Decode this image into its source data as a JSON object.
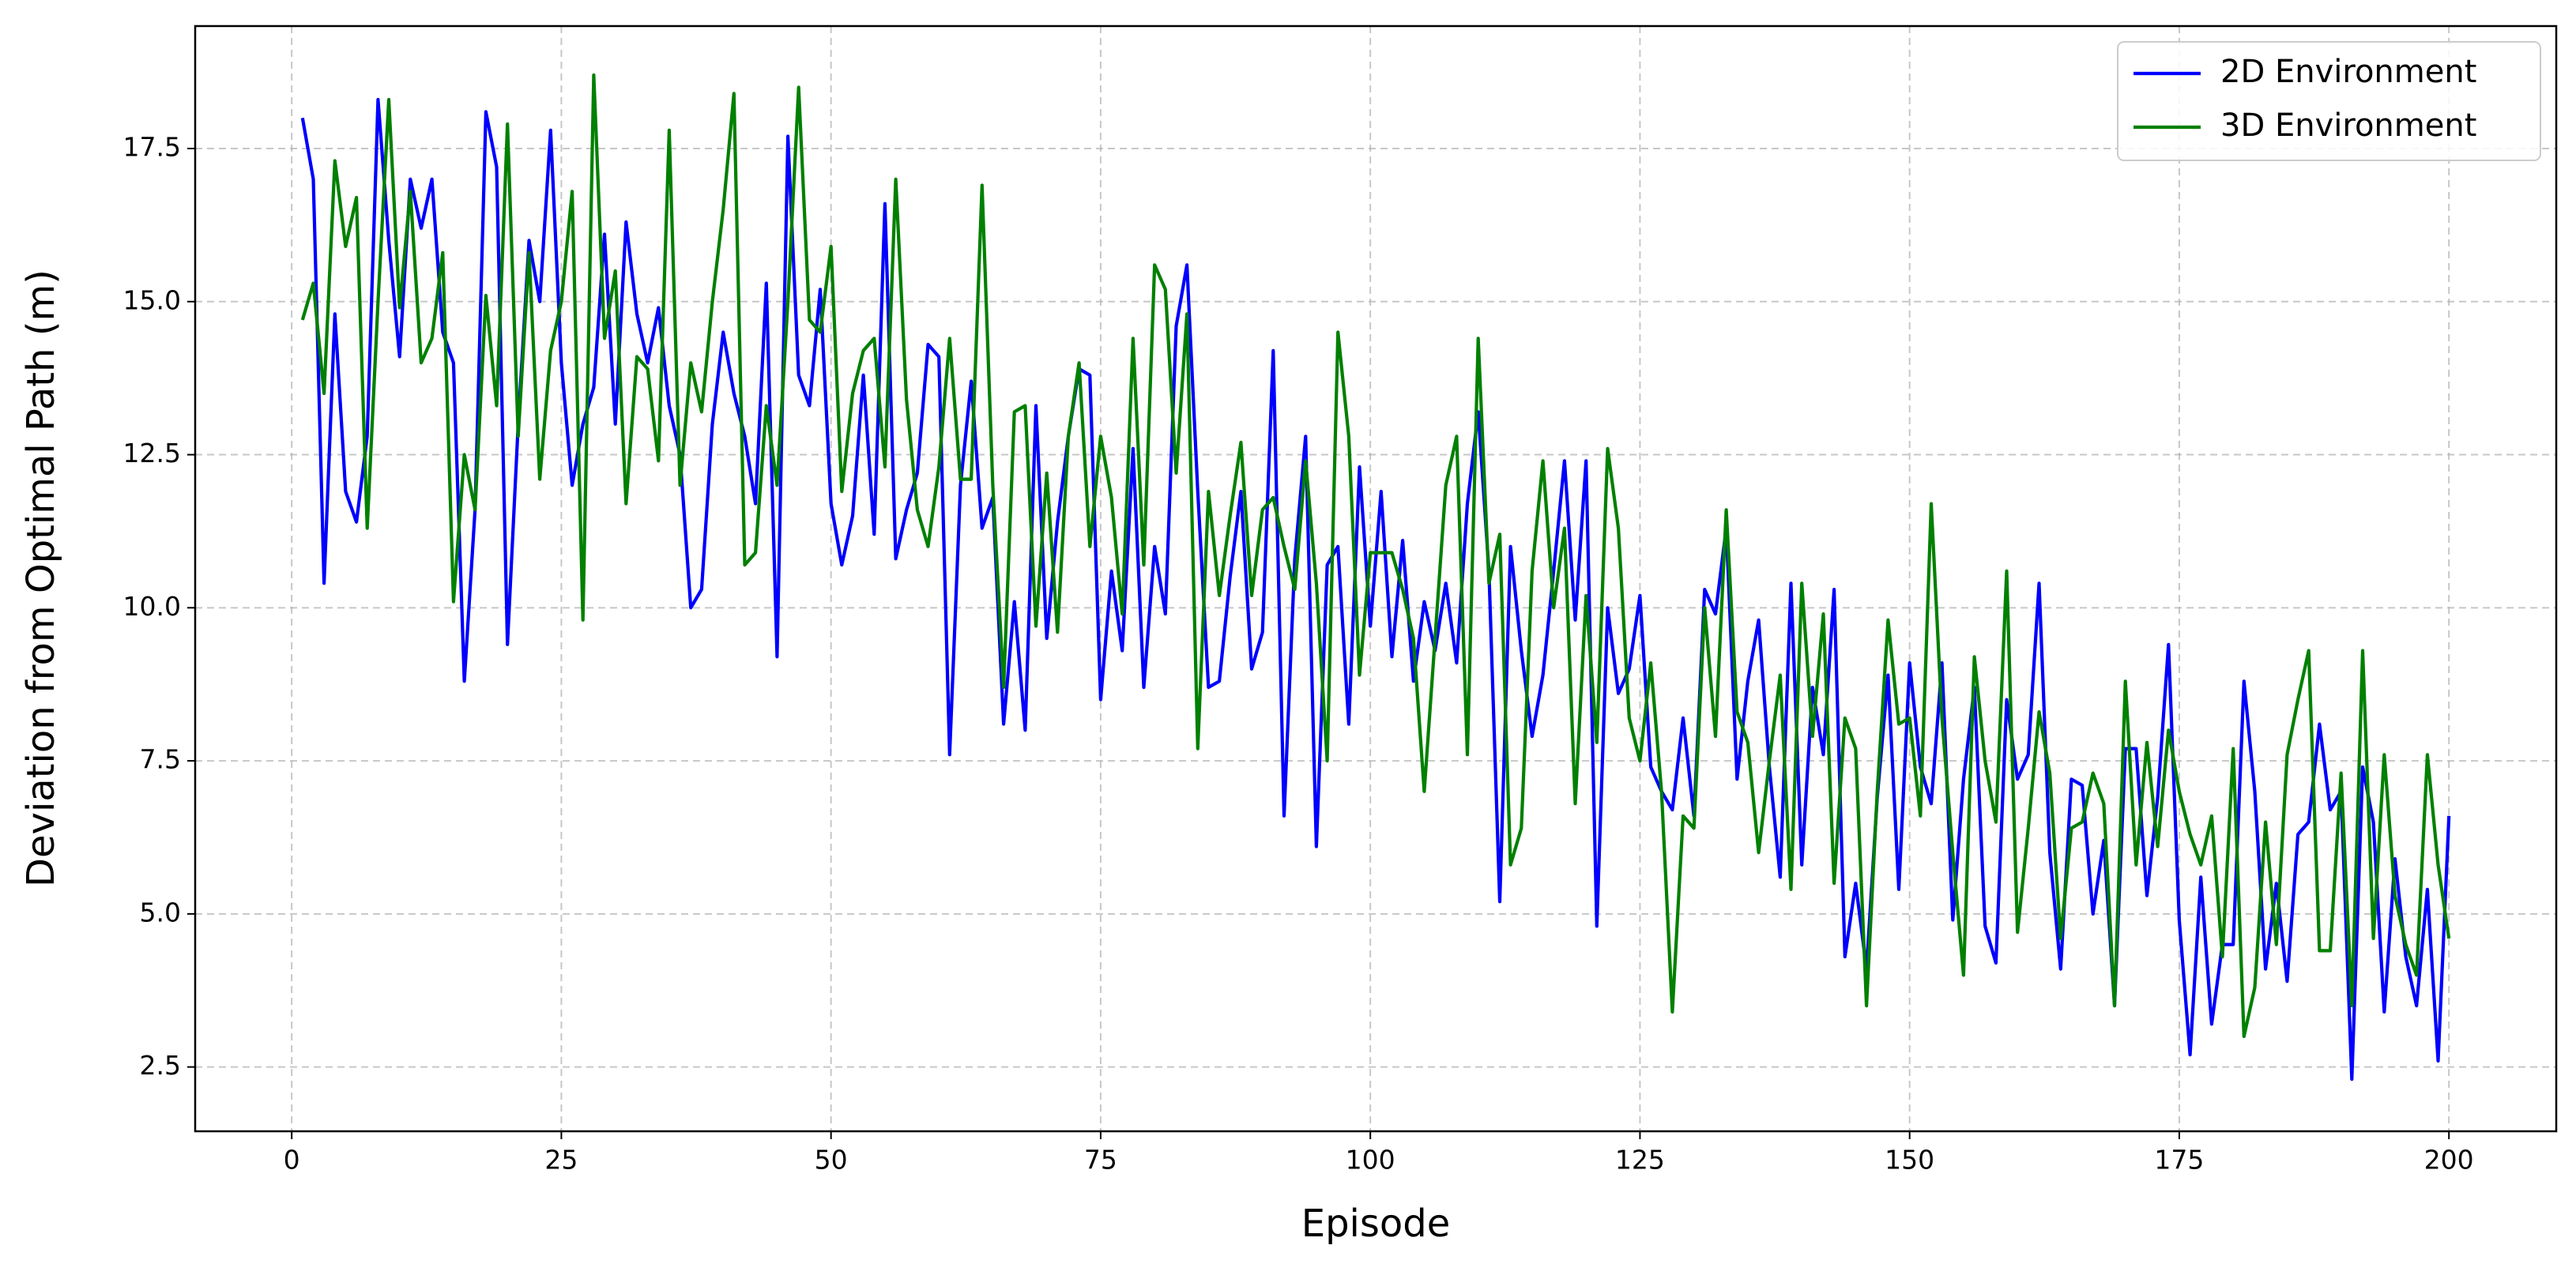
{
  "chart_data": {
    "type": "line",
    "xlabel": "Episode",
    "ylabel": "Deviation from Optimal Path (m)",
    "x": [
      1,
      2,
      3,
      4,
      5,
      6,
      7,
      8,
      9,
      10,
      11,
      12,
      13,
      14,
      15,
      16,
      17,
      18,
      19,
      20,
      21,
      22,
      23,
      24,
      25,
      26,
      27,
      28,
      29,
      30,
      31,
      32,
      33,
      34,
      35,
      36,
      37,
      38,
      39,
      40,
      41,
      42,
      43,
      44,
      45,
      46,
      47,
      48,
      49,
      50,
      51,
      52,
      53,
      54,
      55,
      56,
      57,
      58,
      59,
      60,
      61,
      62,
      63,
      64,
      65,
      66,
      67,
      68,
      69,
      70,
      71,
      72,
      73,
      74,
      75,
      76,
      77,
      78,
      79,
      80,
      81,
      82,
      83,
      84,
      85,
      86,
      87,
      88,
      89,
      90,
      91,
      92,
      93,
      94,
      95,
      96,
      97,
      98,
      99,
      100,
      101,
      102,
      103,
      104,
      105,
      106,
      107,
      108,
      109,
      110,
      111,
      112,
      113,
      114,
      115,
      116,
      117,
      118,
      119,
      120,
      121,
      122,
      123,
      124,
      125,
      126,
      127,
      128,
      129,
      130,
      131,
      132,
      133,
      134,
      135,
      136,
      137,
      138,
      139,
      140,
      141,
      142,
      143,
      144,
      145,
      146,
      147,
      148,
      149,
      150,
      151,
      152,
      153,
      154,
      155,
      156,
      157,
      158,
      159,
      160,
      161,
      162,
      163,
      164,
      165,
      166,
      167,
      168,
      169,
      170,
      171,
      172,
      173,
      174,
      175,
      176,
      177,
      178,
      179,
      180,
      181,
      182,
      183,
      184,
      185,
      186,
      187,
      188,
      189,
      190,
      191,
      192,
      193,
      194,
      195,
      196,
      197,
      198,
      199,
      200
    ],
    "series": [
      {
        "name": "2D Environment",
        "color": "#0000ff",
        "values": [
          18.0,
          17.0,
          10.4,
          14.8,
          11.9,
          11.4,
          12.8,
          18.3,
          16.0,
          14.1,
          17.0,
          16.2,
          17.0,
          14.5,
          14.0,
          8.8,
          11.6,
          18.1,
          17.2,
          9.4,
          13.0,
          16.0,
          15.0,
          17.8,
          14.0,
          12.0,
          13.0,
          13.6,
          16.1,
          13.0,
          16.3,
          14.8,
          14.0,
          14.9,
          13.3,
          12.5,
          10.0,
          10.3,
          13.0,
          14.5,
          13.5,
          12.8,
          11.7,
          15.3,
          9.2,
          17.7,
          13.8,
          13.3,
          15.2,
          11.7,
          10.7,
          11.5,
          13.8,
          11.2,
          16.6,
          10.8,
          11.6,
          12.2,
          14.3,
          14.1,
          7.6,
          12.0,
          13.7,
          11.3,
          11.8,
          8.1,
          10.1,
          8.0,
          13.3,
          9.5,
          11.4,
          12.8,
          13.9,
          13.8,
          8.5,
          10.6,
          9.3,
          12.6,
          8.7,
          11.0,
          9.9,
          14.6,
          15.6,
          11.9,
          8.7,
          8.8,
          10.5,
          11.9,
          9.0,
          9.6,
          14.2,
          6.6,
          10.8,
          12.8,
          6.1,
          10.7,
          11.0,
          8.1,
          12.3,
          9.7,
          11.9,
          9.2,
          11.1,
          8.8,
          10.1,
          9.3,
          10.4,
          9.1,
          11.7,
          13.2,
          10.6,
          5.2,
          11.0,
          9.3,
          7.9,
          8.9,
          10.6,
          12.4,
          9.8,
          12.4,
          4.8,
          10.0,
          8.6,
          9.0,
          10.2,
          7.4,
          7.0,
          6.7,
          8.2,
          6.6,
          10.3,
          9.9,
          11.3,
          7.2,
          8.8,
          9.8,
          7.4,
          5.6,
          10.4,
          5.8,
          8.7,
          7.6,
          10.3,
          4.3,
          5.5,
          4.1,
          6.9,
          8.9,
          5.4,
          9.1,
          7.4,
          6.8,
          9.1,
          4.9,
          7.2,
          8.7,
          4.8,
          4.2,
          8.5,
          7.2,
          7.6,
          10.4,
          6.0,
          4.1,
          7.2,
          7.1,
          5.0,
          6.2,
          3.5,
          7.7,
          7.7,
          5.3,
          6.9,
          9.4,
          4.9,
          2.7,
          5.6,
          3.2,
          4.5,
          4.5,
          8.8,
          7.0,
          4.1,
          5.5,
          3.9,
          6.3,
          6.5,
          8.1,
          6.7,
          7.0,
          2.3,
          7.4,
          6.5,
          3.4,
          5.9,
          4.3,
          3.5,
          5.4,
          2.6,
          6.6
        ]
      },
      {
        "name": "3D Environment",
        "color": "#008000",
        "values": [
          14.7,
          15.3,
          13.5,
          17.3,
          15.9,
          16.7,
          11.3,
          15.0,
          18.3,
          14.9,
          16.8,
          14.0,
          14.4,
          15.8,
          10.1,
          12.5,
          11.6,
          15.1,
          13.3,
          17.9,
          12.8,
          15.8,
          12.1,
          14.2,
          15.0,
          16.8,
          9.8,
          18.7,
          14.4,
          15.5,
          11.7,
          14.1,
          13.9,
          12.4,
          17.8,
          12.0,
          14.0,
          13.2,
          15.0,
          16.5,
          18.4,
          10.7,
          10.9,
          13.3,
          12.0,
          15.0,
          18.5,
          14.7,
          14.5,
          15.9,
          11.9,
          13.5,
          14.2,
          14.4,
          12.3,
          17.0,
          13.4,
          11.6,
          11.0,
          12.3,
          14.4,
          12.1,
          12.1,
          16.9,
          12.0,
          8.7,
          13.2,
          13.3,
          9.7,
          12.2,
          9.6,
          12.8,
          14.0,
          11.0,
          12.8,
          11.8,
          9.9,
          14.4,
          10.7,
          15.6,
          15.2,
          12.2,
          14.8,
          7.7,
          11.9,
          10.2,
          11.5,
          12.7,
          10.2,
          11.6,
          11.8,
          11.0,
          10.3,
          12.4,
          10.4,
          7.5,
          14.5,
          12.8,
          8.9,
          10.9,
          10.9,
          10.9,
          10.3,
          9.5,
          7.0,
          9.5,
          12.0,
          12.8,
          7.6,
          14.4,
          10.4,
          11.2,
          5.8,
          6.4,
          10.6,
          12.4,
          10.0,
          11.3,
          6.8,
          10.2,
          7.8,
          12.6,
          11.3,
          8.2,
          7.5,
          9.1,
          7.0,
          3.4,
          6.6,
          6.4,
          10.0,
          7.9,
          11.6,
          8.3,
          7.8,
          6.0,
          7.5,
          8.9,
          5.4,
          10.4,
          7.9,
          9.9,
          5.5,
          8.2,
          7.7,
          3.5,
          7.0,
          9.8,
          8.1,
          8.2,
          6.6,
          11.7,
          8.2,
          6.0,
          4.0,
          9.2,
          7.5,
          6.5,
          10.6,
          4.7,
          6.4,
          8.3,
          7.3,
          4.6,
          6.4,
          6.5,
          7.3,
          6.8,
          3.5,
          8.8,
          5.8,
          7.8,
          6.1,
          8.0,
          7.0,
          6.3,
          5.8,
          6.6,
          4.3,
          7.7,
          3.0,
          3.8,
          6.5,
          4.5,
          7.6,
          8.5,
          9.3,
          4.4,
          4.4,
          7.3,
          3.5,
          9.3,
          4.6,
          7.6,
          5.3,
          4.5,
          4.0,
          7.6,
          5.8,
          4.6
        ]
      }
    ],
    "xlim": [
      -8.95,
      209.95
    ],
    "xticks": [
      0,
      25,
      50,
      75,
      100,
      125,
      150,
      175,
      200
    ],
    "ylim": [
      1.45,
      19.5
    ],
    "yticks": [
      2.5,
      {
        "value": 5,
        "label": "5.0"
      },
      7.5,
      {
        "value": 10,
        "label": "10.0"
      },
      12.5,
      {
        "value": 15,
        "label": "15.0"
      },
      17.5
    ],
    "grid": true,
    "legend": "upper right"
  }
}
